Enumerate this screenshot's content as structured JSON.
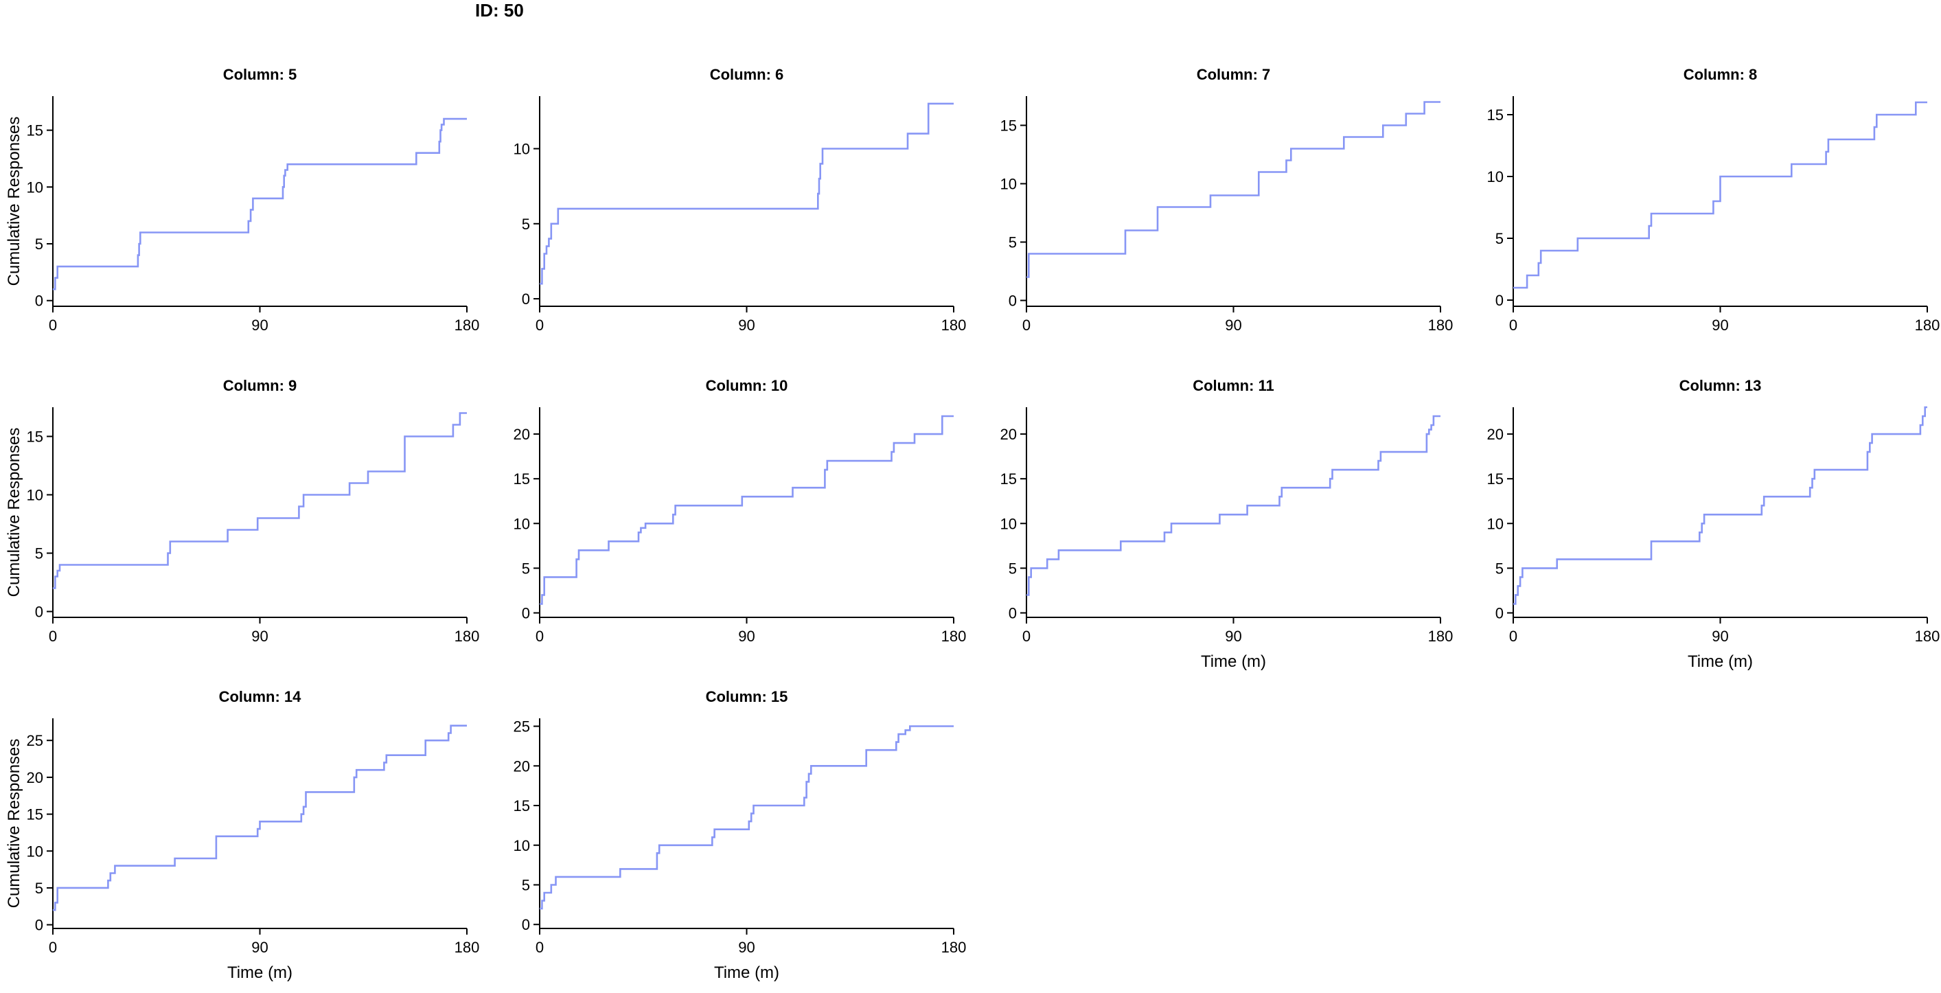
{
  "figure": {
    "title": "ID: 50",
    "line_color": "#8796f5",
    "axis_color": "#000000"
  },
  "chart_data": [
    {
      "type": "line",
      "title": "Column: 5",
      "xlabel": "",
      "ylabel": "Cumulative Responses",
      "xlim": [
        0,
        180
      ],
      "ylim": [
        -0.5,
        18
      ],
      "xticks": [
        0,
        90,
        180
      ],
      "yticks": [
        0,
        5,
        10,
        15
      ],
      "grid": false,
      "series": [
        {
          "step": "post",
          "x": [
            0,
            1,
            2,
            37,
            37.5,
            38,
            85,
            86,
            87,
            100,
            100.5,
            101,
            102,
            158,
            168,
            168.5,
            169,
            170,
            180
          ],
          "y": [
            1,
            2,
            3,
            4,
            5,
            6,
            7,
            8,
            9,
            10,
            11,
            11.5,
            12,
            13,
            14,
            15,
            15.5,
            16,
            16
          ]
        }
      ]
    },
    {
      "type": "line",
      "title": "Column: 6",
      "xlabel": "",
      "ylabel": "",
      "xlim": [
        0,
        180
      ],
      "ylim": [
        -0.5,
        13.5
      ],
      "xticks": [
        0,
        90,
        180
      ],
      "yticks": [
        0,
        5,
        10
      ],
      "grid": false,
      "series": [
        {
          "step": "post",
          "x": [
            0,
            1,
            2,
            3,
            4,
            5,
            8,
            121,
            121.5,
            122,
            123,
            160,
            169,
            180
          ],
          "y": [
            1,
            2,
            3,
            3.5,
            4,
            5,
            6,
            7,
            8,
            9,
            10,
            11,
            13,
            13
          ]
        }
      ]
    },
    {
      "type": "line",
      "title": "Column: 7",
      "xlabel": "",
      "ylabel": "",
      "xlim": [
        0,
        180
      ],
      "ylim": [
        -0.5,
        17.5
      ],
      "xticks": [
        0,
        90,
        180
      ],
      "yticks": [
        0,
        5,
        10,
        15
      ],
      "grid": false,
      "series": [
        {
          "step": "post",
          "x": [
            0,
            1,
            43,
            57,
            80,
            101,
            113,
            115,
            138,
            155,
            165,
            173,
            180
          ],
          "y": [
            2,
            4,
            6,
            8,
            9,
            11,
            12,
            13,
            14,
            15,
            16,
            17,
            17
          ]
        }
      ]
    },
    {
      "type": "line",
      "title": "Column: 8",
      "xlabel": "",
      "ylabel": "",
      "xlim": [
        0,
        180
      ],
      "ylim": [
        -0.5,
        16.5
      ],
      "xticks": [
        0,
        90,
        180
      ],
      "yticks": [
        0,
        5,
        10,
        15
      ],
      "grid": false,
      "series": [
        {
          "step": "post",
          "x": [
            0,
            6,
            11,
            12,
            28,
            59,
            60,
            87,
            90,
            121,
            136,
            137,
            157,
            158,
            175,
            180
          ],
          "y": [
            1,
            2,
            3,
            4,
            5,
            6,
            7,
            8,
            10,
            11,
            12,
            13,
            14,
            15,
            16,
            16
          ]
        }
      ]
    },
    {
      "type": "line",
      "title": "Column: 9",
      "xlabel": "",
      "ylabel": "Cumulative Responses",
      "xlim": [
        0,
        180
      ],
      "ylim": [
        -0.5,
        17.5
      ],
      "xticks": [
        0,
        90,
        180
      ],
      "yticks": [
        0,
        5,
        10,
        15
      ],
      "grid": false,
      "series": [
        {
          "step": "post",
          "x": [
            0,
            1,
            2,
            3,
            50,
            51,
            76,
            89,
            107,
            109,
            129,
            137,
            153,
            174,
            177,
            180
          ],
          "y": [
            2,
            3,
            3.5,
            4,
            5,
            6,
            7,
            8,
            9,
            10,
            11,
            12,
            15,
            16,
            17,
            17
          ]
        }
      ]
    },
    {
      "type": "line",
      "title": "Column: 10",
      "xlabel": "",
      "ylabel": "",
      "xlim": [
        0,
        180
      ],
      "ylim": [
        -0.5,
        23
      ],
      "xticks": [
        0,
        90,
        180
      ],
      "yticks": [
        0,
        5,
        10,
        15,
        20
      ],
      "grid": false,
      "series": [
        {
          "step": "post",
          "x": [
            0,
            1,
            2,
            16,
            17,
            30,
            43,
            44,
            46,
            58,
            59,
            88,
            110,
            124,
            125,
            153,
            154,
            163,
            175,
            180
          ],
          "y": [
            1,
            2,
            4,
            6,
            7,
            8,
            9,
            9.5,
            10,
            11,
            12,
            13,
            14,
            16,
            17,
            18,
            19,
            20,
            22,
            22
          ]
        }
      ]
    },
    {
      "type": "line",
      "title": "Column: 11",
      "xlabel": "Time (m)",
      "ylabel": "",
      "xlim": [
        0,
        180
      ],
      "ylim": [
        -0.5,
        23
      ],
      "xticks": [
        0,
        90,
        180
      ],
      "yticks": [
        0,
        5,
        10,
        15,
        20
      ],
      "grid": false,
      "series": [
        {
          "step": "post",
          "x": [
            0,
            1,
            2,
            9,
            14,
            41,
            60,
            63,
            84,
            96,
            110,
            111,
            132,
            133,
            153,
            154,
            174,
            175,
            176,
            177,
            180
          ],
          "y": [
            2,
            4,
            5,
            6,
            7,
            8,
            9,
            10,
            11,
            12,
            13,
            14,
            15,
            16,
            17,
            18,
            20,
            20.5,
            21,
            22,
            22
          ]
        }
      ]
    },
    {
      "type": "line",
      "title": "Column: 13",
      "xlabel": "Time (m)",
      "ylabel": "",
      "xlim": [
        0,
        180
      ],
      "ylim": [
        -0.5,
        23
      ],
      "xticks": [
        0,
        90,
        180
      ],
      "yticks": [
        0,
        5,
        10,
        15,
        20
      ],
      "grid": false,
      "series": [
        {
          "step": "post",
          "x": [
            0,
            1,
            2,
            3,
            4,
            19,
            60,
            81,
            82,
            83,
            108,
            109,
            129,
            130,
            131,
            154,
            155,
            156,
            177,
            178,
            179,
            180
          ],
          "y": [
            1,
            2,
            3,
            4,
            5,
            6,
            8,
            9,
            10,
            11,
            12,
            13,
            14,
            15,
            16,
            18,
            19,
            20,
            21,
            22,
            23,
            23
          ]
        }
      ]
    },
    {
      "type": "line",
      "title": "Column: 14",
      "xlabel": "Time (m)",
      "ylabel": "Cumulative Responses",
      "xlim": [
        0,
        180
      ],
      "ylim": [
        -0.5,
        28
      ],
      "xticks": [
        0,
        90,
        180
      ],
      "yticks": [
        0,
        5,
        10,
        15,
        20,
        25
      ],
      "grid": false,
      "series": [
        {
          "step": "post",
          "x": [
            0,
            1,
            2,
            24,
            25,
            27,
            53,
            71,
            89,
            90,
            108,
            109,
            110,
            131,
            132,
            144,
            145,
            162,
            172,
            173,
            180
          ],
          "y": [
            2,
            3,
            5,
            6,
            7,
            8,
            9,
            12,
            13,
            14,
            15,
            16,
            18,
            20,
            21,
            22,
            23,
            25,
            26,
            27,
            27
          ]
        }
      ]
    },
    {
      "type": "line",
      "title": "Column: 15",
      "xlabel": "Time (m)",
      "ylabel": "",
      "xlim": [
        0,
        180
      ],
      "ylim": [
        -0.5,
        26
      ],
      "xticks": [
        0,
        90,
        180
      ],
      "yticks": [
        0,
        5,
        10,
        15,
        20,
        25
      ],
      "grid": false,
      "series": [
        {
          "step": "post",
          "x": [
            0,
            1,
            2,
            5,
            7,
            35,
            51,
            52,
            75,
            76,
            91,
            92,
            93,
            115,
            116,
            117,
            118,
            142,
            155,
            156,
            159,
            161,
            180
          ],
          "y": [
            2,
            3,
            4,
            5,
            6,
            7,
            9,
            10,
            11,
            12,
            13,
            14,
            15,
            16,
            18,
            19,
            20,
            22,
            23,
            24,
            24.5,
            25,
            25
          ]
        }
      ]
    }
  ]
}
